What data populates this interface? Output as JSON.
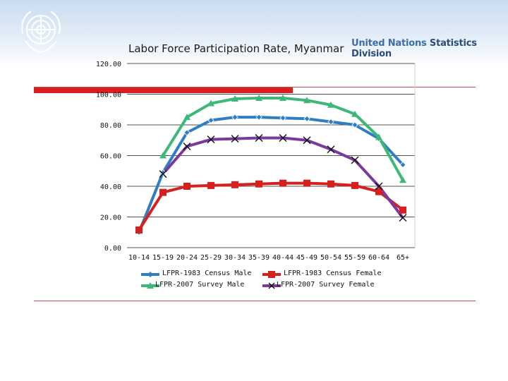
{
  "header": {
    "org_name_part1": "United Nations",
    "org_name_part2": " Statistics Division"
  },
  "colors": {
    "accent_red": "#d62020",
    "band_blue": "#c9dcef"
  },
  "chart_data": {
    "type": "line",
    "title": "Labor Force Participation Rate, Myanmar",
    "xlabel": "",
    "ylabel": "",
    "ylim": [
      0,
      120
    ],
    "yticks": [
      "0.00",
      "20.00",
      "40.00",
      "60.00",
      "80.00",
      "100.00",
      "120.00"
    ],
    "grid": true,
    "legend_position": "bottom",
    "categories": [
      "10-14",
      "15-19",
      "20-24",
      "25-29",
      "30-34",
      "35-39",
      "40-44",
      "45-49",
      "50-54",
      "55-59",
      "60-64",
      "65+"
    ],
    "series": [
      {
        "name": "LFPR-1983 Census Male",
        "color": "#2e7ec4",
        "marker": "diamond",
        "values": [
          10,
          49,
          75,
          83,
          85,
          85,
          84.5,
          84,
          82,
          80,
          71,
          54
        ]
      },
      {
        "name": "LFPR-1983 Census Female",
        "color": "#d62020",
        "marker": "square",
        "values": [
          11.5,
          36,
          40,
          40.5,
          41,
          41.5,
          42,
          42,
          41.5,
          40.5,
          36.5,
          24.5
        ]
      },
      {
        "name": "LFPR-2007 Survey Male",
        "color": "#3cb878",
        "marker": "triangle",
        "values": [
          null,
          60,
          85,
          94,
          97,
          97.5,
          97.5,
          96,
          93,
          87,
          72,
          44
        ]
      },
      {
        "name": "LFPR-2007 Survey Female",
        "color": "#7a3a9c",
        "marker": "x",
        "values": [
          null,
          48,
          66,
          70.5,
          71,
          71.5,
          71.5,
          70,
          64,
          57,
          40,
          19.5
        ]
      }
    ]
  }
}
